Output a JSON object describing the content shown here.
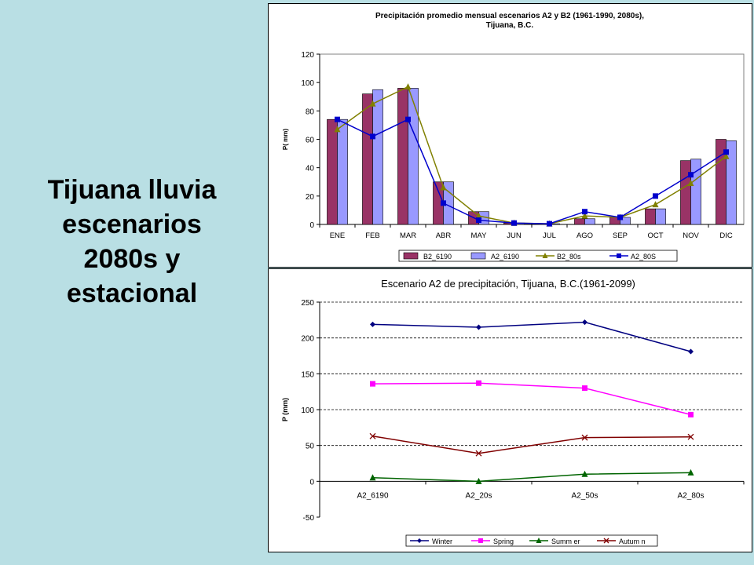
{
  "slide": {
    "title_lines": [
      "Tijuana lluvia",
      "escenarios",
      "2080s y",
      "estacional"
    ]
  },
  "chart_data": [
    {
      "type": "bar",
      "title_lines": [
        "Precipitación promedio mensual escenarios A2 y B2 (1961-1990, 2080s),",
        "Tijuana, B.C."
      ],
      "xlabel": "",
      "ylabel": "P( mm)",
      "ylim": [
        0,
        120
      ],
      "yticks": [
        0,
        20,
        40,
        60,
        80,
        100,
        120
      ],
      "categories": [
        "ENE",
        "FEB",
        "MAR",
        "ABR",
        "MAY",
        "JUN",
        "JUL",
        "AGO",
        "SEP",
        "OCT",
        "NOV",
        "DIC"
      ],
      "legend_position": "bottom",
      "series": [
        {
          "name": "B2_6190",
          "type": "bar",
          "color": "#993366",
          "values": [
            74,
            92,
            96,
            30,
            9,
            1,
            0.5,
            4,
            5,
            11,
            45,
            60
          ]
        },
        {
          "name": "A2_6190",
          "type": "bar",
          "color": "#9999ff",
          "values": [
            74,
            95,
            96,
            30,
            9,
            1,
            0.5,
            4,
            5,
            11,
            46,
            59
          ]
        },
        {
          "name": "B2_80s",
          "type": "line",
          "marker": "triangle",
          "color": "#808000",
          "values": [
            67,
            85,
            97,
            26,
            6,
            1,
            0.5,
            6,
            5,
            14,
            29,
            48
          ]
        },
        {
          "name": "A2_80S",
          "type": "line",
          "marker": "square",
          "color": "#0000cc",
          "values": [
            74,
            62,
            74,
            15,
            3,
            1,
            0.5,
            9,
            5,
            20,
            35,
            51
          ]
        }
      ]
    },
    {
      "type": "line",
      "title": "Escenario A2 de precipitación, Tijuana, B.C.(1961-2099)",
      "xlabel": "",
      "ylabel": "P (mm)",
      "ylim": [
        -50,
        250
      ],
      "yticks": [
        -50,
        0,
        50,
        100,
        150,
        200,
        250
      ],
      "grid": "horizontal dashed",
      "categories": [
        "A2_6190",
        "A2_20s",
        "A2_50s",
        "A2_80s"
      ],
      "legend_position": "bottom",
      "series": [
        {
          "name": "Winter",
          "marker": "diamond",
          "color": "#000080",
          "values": [
            219,
            215,
            222,
            181
          ]
        },
        {
          "name": "Spring",
          "marker": "square",
          "color": "#ff00ff",
          "values": [
            136,
            137,
            130,
            93
          ]
        },
        {
          "name": "Summ er",
          "marker": "triangle",
          "color": "#006400",
          "values": [
            5,
            0,
            10,
            12
          ]
        },
        {
          "name": "Autum n",
          "marker": "x",
          "color": "#800000",
          "values": [
            63,
            39,
            61,
            62
          ]
        }
      ]
    }
  ]
}
